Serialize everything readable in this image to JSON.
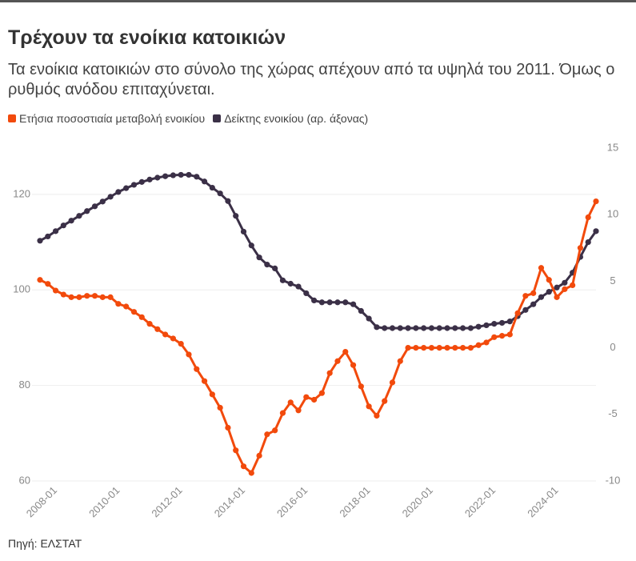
{
  "chart_data": {
    "type": "line",
    "title": "Τρέχουν τα ενοίκια κατοικιών",
    "subtitle": "Τα ενοίκια κατοικιών στο σύνολο της χώρας απέχουν από τα υψηλά του 2011. Όμως ο ρυθμός ανόδου επιταχύνεται.",
    "source": "Πηγή: ΕΛΣΤΑΤ",
    "categories": [
      null,
      null,
      "2008-01",
      null,
      null,
      null,
      null,
      null,
      null,
      null,
      "2010-01",
      null,
      null,
      null,
      null,
      null,
      null,
      null,
      "2012-01",
      null,
      null,
      null,
      null,
      null,
      null,
      null,
      "2014-01",
      null,
      null,
      null,
      null,
      null,
      null,
      null,
      "2016-01",
      null,
      null,
      null,
      null,
      null,
      null,
      null,
      "2018-01",
      null,
      null,
      null,
      null,
      null,
      null,
      null,
      "2020-01",
      null,
      null,
      null,
      null,
      null,
      null,
      null,
      "2022-01",
      null,
      null,
      null,
      null,
      null,
      null,
      null,
      "2024-01",
      null,
      null,
      null,
      null,
      null
    ],
    "series": [
      {
        "name": "Ετήσια ποσοστιαία μεταβολή ενοικίου",
        "color": "#f24a0c",
        "axis": "y2",
        "values": [
          5.1,
          4.8,
          4.3,
          4.0,
          3.8,
          3.8,
          3.9,
          3.9,
          3.8,
          3.8,
          3.3,
          3.1,
          2.7,
          2.3,
          1.8,
          1.4,
          1.0,
          0.7,
          0.3,
          -0.5,
          -1.6,
          -2.5,
          -3.5,
          -4.5,
          -6.0,
          -7.7,
          -8.9,
          -9.4,
          -8.1,
          -6.5,
          -6.2,
          -4.9,
          -4.1,
          -4.7,
          -3.7,
          -3.9,
          -3.4,
          -1.9,
          -1.0,
          -0.3,
          -1.3,
          -2.9,
          -4.4,
          -5.1,
          -4.0,
          -2.6,
          -1.0,
          0.0,
          0.0,
          0.0,
          0.0,
          0.0,
          0.0,
          0.0,
          0.0,
          0.0,
          0.2,
          0.4,
          0.8,
          0.9,
          1.0,
          2.6,
          3.9,
          4.1,
          6.0,
          5.1,
          3.8,
          4.4,
          4.7,
          7.5,
          9.8,
          11.0
        ]
      },
      {
        "name": "Δείκτης ενοικίου (αρ. άξονας)",
        "color": "#3b3047",
        "values": [
          110.3,
          111.2,
          112.3,
          113.5,
          114.5,
          115.5,
          116.5,
          117.5,
          118.5,
          119.5,
          120.5,
          121.3,
          122.0,
          122.6,
          123.1,
          123.5,
          123.8,
          124.0,
          124.1,
          124.1,
          123.7,
          122.7,
          121.4,
          120.2,
          118.6,
          115.5,
          112.2,
          109.3,
          106.8,
          105.3,
          104.5,
          102.0,
          101.3,
          100.7,
          99.3,
          97.8,
          97.4,
          97.4,
          97.4,
          97.4,
          97.0,
          95.6,
          94.0,
          92.2,
          92.0,
          92.0,
          92.0,
          92.0,
          92.0,
          92.0,
          92.0,
          92.0,
          92.0,
          92.0,
          92.0,
          92.0,
          92.3,
          92.6,
          92.9,
          93.1,
          93.4,
          94.5,
          95.8,
          97.0,
          98.5,
          99.6,
          100.5,
          101.5,
          103.6,
          106.9,
          110.0,
          112.3
        ]
      }
    ],
    "ylim": [
      60,
      129.7
    ],
    "yticks": [
      60,
      80,
      100,
      120
    ],
    "y2lim": [
      -10,
      15
    ],
    "y2ticks": [
      -10,
      -5,
      0,
      5,
      10,
      15
    ],
    "grid": true
  }
}
